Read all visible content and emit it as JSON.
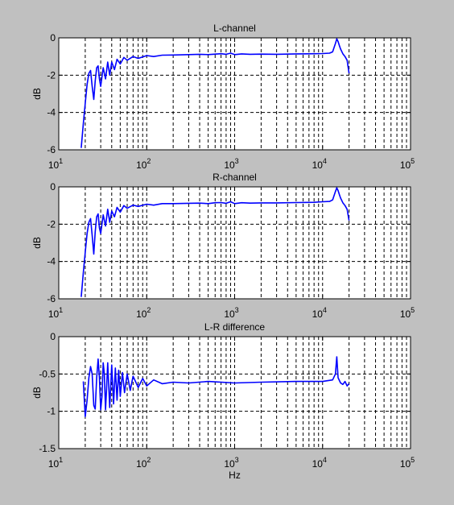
{
  "figure": {
    "background": "#c0c0c0",
    "axes_background": "#ffffff",
    "line_color": "#0000ff"
  },
  "chart_data": [
    {
      "type": "line",
      "title": "L-channel",
      "xlabel": "",
      "ylabel": "dB",
      "xscale": "log",
      "xlim": [
        10,
        100000
      ],
      "ylim": [
        -6,
        0
      ],
      "yticks": [
        0,
        -2,
        -4,
        -6
      ],
      "ytick_labels": [
        "0",
        "-2",
        "-4",
        "-6"
      ],
      "xtick_labels": [
        "10^1",
        "10^2",
        "10^3",
        "10^4",
        "10^5"
      ],
      "grid": "dashed",
      "series": [
        {
          "x": [
            18,
            19,
            20,
            21,
            22,
            23,
            24,
            25,
            26,
            27,
            28,
            29,
            30,
            32,
            34,
            36,
            38,
            40,
            43,
            46,
            50,
            55,
            60,
            70,
            80,
            100,
            120,
            150,
            200,
            300,
            400,
            500,
            600,
            700,
            800,
            900,
            1000,
            1200,
            1500,
            2000,
            3000,
            5000,
            8000,
            10000,
            12000,
            13000,
            14000,
            14500,
            15000,
            15500,
            16000,
            17000,
            18000,
            19000,
            20000
          ],
          "y": [
            -5.9,
            -4.6,
            -3.5,
            -2.5,
            -1.9,
            -1.75,
            -2.6,
            -3.3,
            -2.3,
            -1.6,
            -1.5,
            -2.2,
            -2.6,
            -1.6,
            -2.2,
            -1.3,
            -2.0,
            -1.3,
            -1.7,
            -1.15,
            -1.4,
            -1.05,
            -1.2,
            -1.0,
            -1.1,
            -0.95,
            -1.0,
            -0.93,
            -0.92,
            -0.9,
            -0.88,
            -0.9,
            -0.87,
            -0.85,
            -0.88,
            -0.82,
            -0.9,
            -0.86,
            -0.88,
            -0.87,
            -0.88,
            -0.86,
            -0.85,
            -0.84,
            -0.82,
            -0.75,
            -0.3,
            -0.05,
            -0.2,
            -0.4,
            -0.6,
            -0.85,
            -1.0,
            -1.2,
            -1.9
          ]
        }
      ]
    },
    {
      "type": "line",
      "title": "R-channel",
      "xlabel": "",
      "ylabel": "dB",
      "xscale": "log",
      "xlim": [
        10,
        100000
      ],
      "ylim": [
        -6,
        0
      ],
      "yticks": [
        0,
        -2,
        -4,
        -6
      ],
      "ytick_labels": [
        "0",
        "-2",
        "-4",
        "-6"
      ],
      "xtick_labels": [
        "10^1",
        "10^2",
        "10^3",
        "10^4",
        "10^5"
      ],
      "grid": "dashed",
      "series": [
        {
          "x": [
            18,
            19,
            20,
            21,
            22,
            23,
            24,
            25,
            26,
            27,
            28,
            29,
            30,
            32,
            34,
            36,
            38,
            40,
            43,
            46,
            50,
            55,
            60,
            70,
            80,
            100,
            120,
            150,
            200,
            300,
            400,
            500,
            600,
            700,
            800,
            900,
            1000,
            1200,
            1500,
            2000,
            3000,
            5000,
            8000,
            10000,
            12000,
            13000,
            14000,
            14500,
            15000,
            15500,
            16000,
            17000,
            18000,
            19000,
            20000
          ],
          "y": [
            -5.9,
            -4.6,
            -3.5,
            -2.5,
            -1.9,
            -1.7,
            -2.6,
            -3.6,
            -2.4,
            -1.6,
            -1.45,
            -2.2,
            -2.5,
            -1.5,
            -2.1,
            -1.2,
            -1.9,
            -1.3,
            -1.6,
            -1.1,
            -1.35,
            -1.0,
            -1.15,
            -0.98,
            -1.05,
            -0.93,
            -0.98,
            -0.9,
            -0.9,
            -0.88,
            -0.87,
            -0.9,
            -0.85,
            -0.84,
            -0.88,
            -0.8,
            -0.9,
            -0.85,
            -0.87,
            -0.86,
            -0.86,
            -0.84,
            -0.83,
            -0.8,
            -0.78,
            -0.7,
            -0.25,
            -0.05,
            -0.2,
            -0.4,
            -0.6,
            -0.85,
            -1.0,
            -1.2,
            -1.8
          ]
        }
      ]
    },
    {
      "type": "line",
      "title": "L-R difference",
      "xlabel": "Hz",
      "ylabel": "dB",
      "xscale": "log",
      "xlim": [
        10,
        100000
      ],
      "ylim": [
        -1.5,
        0
      ],
      "yticks": [
        0,
        -0.5,
        -1,
        -1.5
      ],
      "ytick_labels": [
        "0",
        "-0.5",
        "-1",
        "-1.5"
      ],
      "xtick_labels": [
        "10^1",
        "10^2",
        "10^3",
        "10^4",
        "10^5"
      ],
      "grid": "dashed",
      "series": [
        {
          "x": [
            19,
            20,
            21,
            22,
            23,
            24,
            25,
            26,
            27,
            28,
            29,
            30,
            31,
            32,
            33,
            34,
            35,
            36,
            38,
            40,
            42,
            44,
            46,
            48,
            50,
            53,
            56,
            60,
            65,
            70,
            80,
            90,
            100,
            120,
            150,
            200,
            300,
            500,
            1000,
            2000,
            5000,
            10000,
            13000,
            14000,
            14500,
            15000,
            16000,
            17000,
            18000,
            19000,
            20000
          ],
          "y": [
            -0.6,
            -1.07,
            -0.85,
            -0.55,
            -0.4,
            -0.5,
            -0.92,
            -0.97,
            -0.55,
            -0.3,
            -0.55,
            -0.98,
            -0.8,
            -0.35,
            -0.5,
            -0.98,
            -0.7,
            -0.35,
            -0.95,
            -0.38,
            -0.9,
            -0.42,
            -0.85,
            -0.45,
            -0.8,
            -0.48,
            -0.75,
            -0.5,
            -0.72,
            -0.53,
            -0.68,
            -0.56,
            -0.66,
            -0.58,
            -0.63,
            -0.61,
            -0.62,
            -0.6,
            -0.62,
            -0.61,
            -0.6,
            -0.6,
            -0.58,
            -0.5,
            -0.27,
            -0.55,
            -0.62,
            -0.64,
            -0.6,
            -0.66,
            -0.63
          ]
        }
      ]
    }
  ]
}
